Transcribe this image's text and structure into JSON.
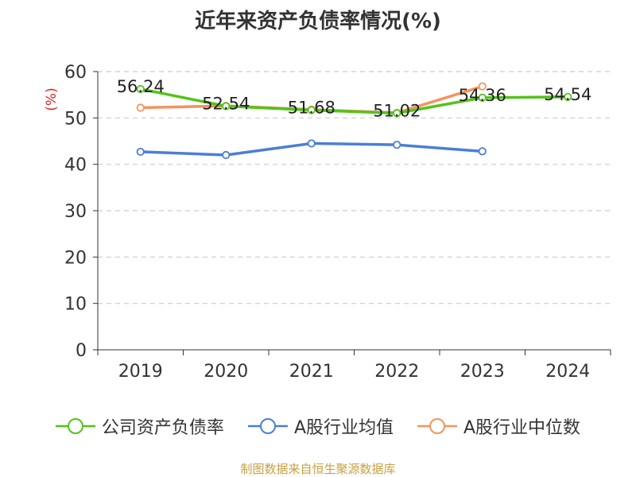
{
  "chart_data": {
    "type": "line",
    "title": "近年来资产负债率情况(%)",
    "ylabel": "(%)",
    "xlabel": "",
    "categories": [
      "2019",
      "2020",
      "2021",
      "2022",
      "2023",
      "2024"
    ],
    "ylim": [
      0,
      60
    ],
    "yticks": [
      0,
      10,
      20,
      30,
      40,
      50,
      60
    ],
    "grid": true,
    "legend_position": "bottom",
    "series": [
      {
        "name": "公司资产负债率",
        "color": "#52c41a",
        "values": [
          56.24,
          52.54,
          51.68,
          51.02,
          54.36,
          54.54
        ],
        "labels": [
          "56.24",
          "52.54",
          "51.68",
          "51.02",
          "54.36",
          "54.54"
        ]
      },
      {
        "name": "A股行业均值",
        "color": "#4a7fd4",
        "values": [
          42.7,
          42.0,
          44.5,
          44.2,
          42.8,
          null
        ]
      },
      {
        "name": "A股行业中位数",
        "color": "#f4935e",
        "values": [
          52.2,
          52.6,
          51.8,
          51.1,
          56.8,
          null
        ]
      }
    ]
  },
  "footer": "制图数据来自恒生聚源数据库"
}
